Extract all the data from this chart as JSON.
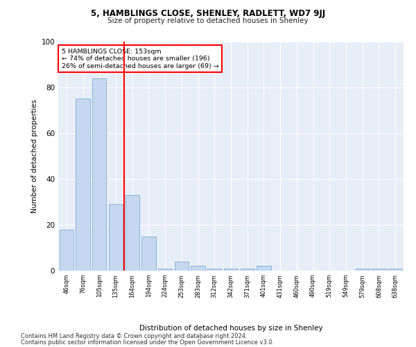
{
  "title1": "5, HAMBLINGS CLOSE, SHENLEY, RADLETT, WD7 9JJ",
  "title2": "Size of property relative to detached houses in Shenley",
  "xlabel": "Distribution of detached houses by size in Shenley",
  "ylabel": "Number of detached properties",
  "categories": [
    "46sqm",
    "76sqm",
    "105sqm",
    "135sqm",
    "164sqm",
    "194sqm",
    "224sqm",
    "253sqm",
    "283sqm",
    "312sqm",
    "342sqm",
    "371sqm",
    "401sqm",
    "431sqm",
    "460sqm",
    "490sqm",
    "519sqm",
    "549sqm",
    "579sqm",
    "608sqm",
    "638sqm"
  ],
  "values": [
    18,
    75,
    84,
    29,
    33,
    15,
    1,
    4,
    2,
    1,
    1,
    1,
    2,
    0,
    0,
    0,
    0,
    0,
    1,
    1,
    1
  ],
  "bar_color": "#c5d8f0",
  "bar_edge_color": "#7aadd4",
  "red_line_x": 3.5,
  "annotation_text": "5 HAMBLINGS CLOSE: 153sqm\n← 74% of detached houses are smaller (196)\n26% of semi-detached houses are larger (69) →",
  "footnote1": "Contains HM Land Registry data © Crown copyright and database right 2024.",
  "footnote2": "Contains public sector information licensed under the Open Government Licence v3.0.",
  "ylim": [
    0,
    100
  ],
  "plot_background": "#e8eef8",
  "fig_background": "#ffffff"
}
